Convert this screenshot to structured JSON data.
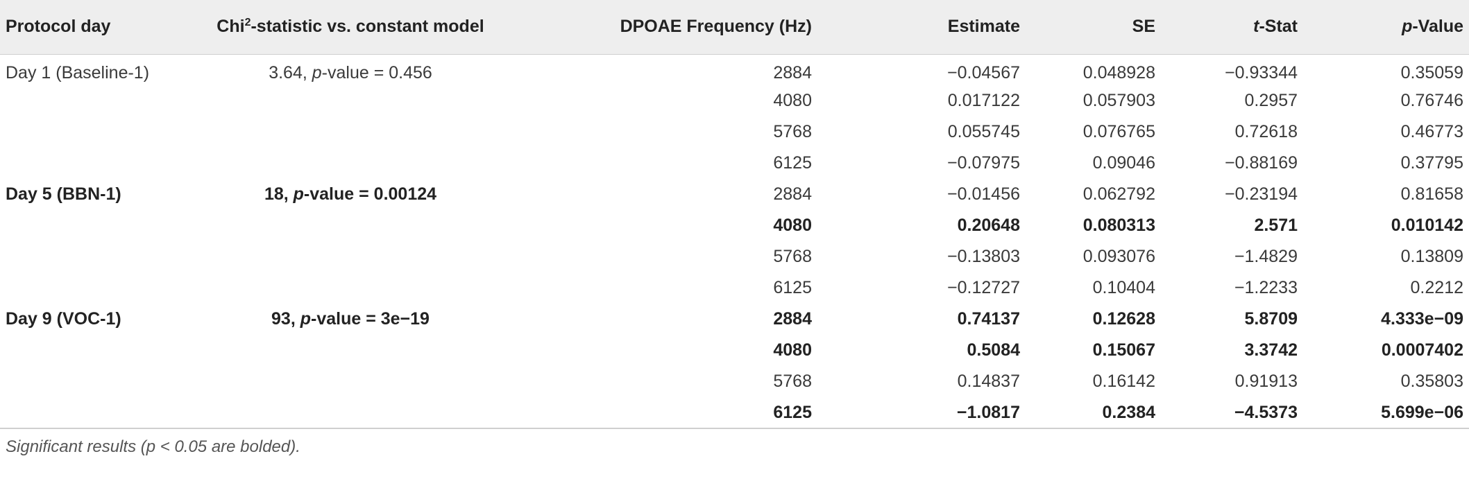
{
  "header": {
    "protocol_day": "Protocol day",
    "chi_prefix": "Chi",
    "chi_sup": "2",
    "chi_suffix": "-statistic vs. constant model",
    "freq": "DPOAE Frequency (Hz)",
    "estimate": "Estimate",
    "se": "SE",
    "t_italic": "t",
    "t_suffix": "-Stat",
    "p_italic": "p",
    "p_suffix": "-Value"
  },
  "groups": [
    {
      "day": "Day 1 (Baseline-1)",
      "chi_value": "3.64, ",
      "chi_p_italic": "p",
      "chi_p_rest": "-value = 0.456",
      "bold": false,
      "rows": [
        {
          "freq": "2884",
          "estimate": "−0.04567",
          "se": "0.048928",
          "t": "−0.93344",
          "p": "0.35059",
          "bold": false
        },
        {
          "freq": "4080",
          "estimate": "0.017122",
          "se": "0.057903",
          "t": "0.2957",
          "p": "0.76746",
          "bold": false
        },
        {
          "freq": "5768",
          "estimate": "0.055745",
          "se": "0.076765",
          "t": "0.72618",
          "p": "0.46773",
          "bold": false
        },
        {
          "freq": "6125",
          "estimate": "−0.07975",
          "se": "0.09046",
          "t": "−0.88169",
          "p": "0.37795",
          "bold": false
        }
      ]
    },
    {
      "day": "Day 5 (BBN-1)",
      "chi_value": "18, ",
      "chi_p_italic": "p",
      "chi_p_rest": "-value = 0.00124",
      "bold": true,
      "rows": [
        {
          "freq": "2884",
          "estimate": "−0.01456",
          "se": "0.062792",
          "t": "−0.23194",
          "p": "0.81658",
          "bold": false
        },
        {
          "freq": "4080",
          "estimate": "0.20648",
          "se": "0.080313",
          "t": "2.571",
          "p": "0.010142",
          "bold": true
        },
        {
          "freq": "5768",
          "estimate": "−0.13803",
          "se": "0.093076",
          "t": "−1.4829",
          "p": "0.13809",
          "bold": false
        },
        {
          "freq": "6125",
          "estimate": "−0.12727",
          "se": "0.10404",
          "t": "−1.2233",
          "p": "0.2212",
          "bold": false
        }
      ]
    },
    {
      "day": "Day 9 (VOC-1)",
      "chi_value": "93, ",
      "chi_p_italic": "p",
      "chi_p_rest": "-value = 3e−19",
      "bold": true,
      "rows": [
        {
          "freq": "2884",
          "estimate": "0.74137",
          "se": "0.12628",
          "t": "5.8709",
          "p": "4.333e−09",
          "bold": true
        },
        {
          "freq": "4080",
          "estimate": "0.5084",
          "se": "0.15067",
          "t": "3.3742",
          "p": "0.0007402",
          "bold": true
        },
        {
          "freq": "5768",
          "estimate": "0.14837",
          "se": "0.16142",
          "t": "0.91913",
          "p": "0.35803",
          "bold": false
        },
        {
          "freq": "6125",
          "estimate": "−1.0817",
          "se": "0.2384",
          "t": "−4.5373",
          "p": "5.699e−06",
          "bold": true
        }
      ]
    }
  ],
  "footnote": "Significant results (p < 0.05 are bolded)."
}
